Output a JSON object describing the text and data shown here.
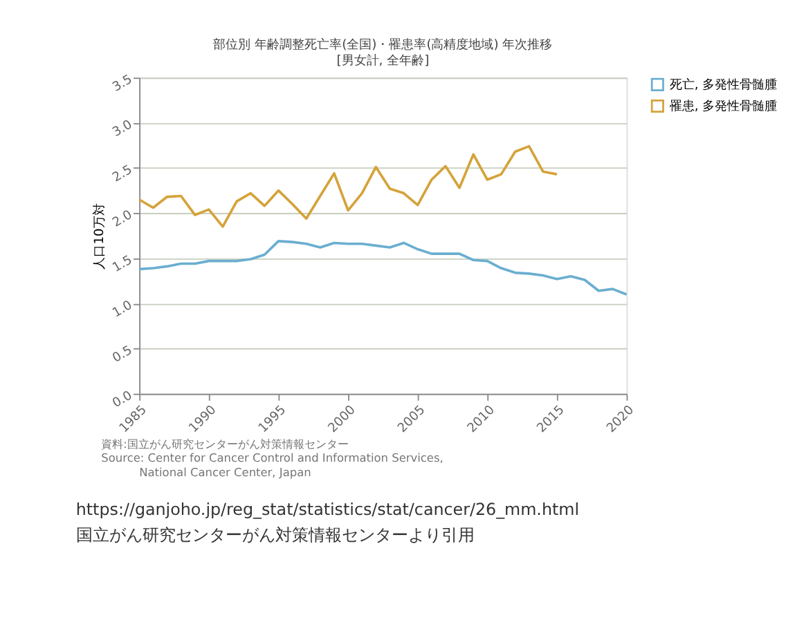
{
  "chart_data": {
    "type": "line",
    "title": "部位別 年齢調整死亡率(全国)・罹患率(高精度地域) 年次推移",
    "subtitle": "[男女計, 全年齢]",
    "ylabel": "人口10万対",
    "x": [
      1985,
      1986,
      1987,
      1988,
      1989,
      1990,
      1991,
      1992,
      1993,
      1994,
      1995,
      1996,
      1997,
      1998,
      1999,
      2000,
      2001,
      2002,
      2003,
      2004,
      2005,
      2006,
      2007,
      2008,
      2009,
      2010,
      2011,
      2012,
      2013,
      2014,
      2015,
      2016,
      2017,
      2018,
      2019,
      2020
    ],
    "series": [
      {
        "name": "死亡, 多発性骨髄腫",
        "color": "#6aaed0",
        "values": [
          1.38,
          1.39,
          1.41,
          1.44,
          1.44,
          1.47,
          1.47,
          1.47,
          1.49,
          1.54,
          1.69,
          1.68,
          1.66,
          1.62,
          1.67,
          1.66,
          1.66,
          1.64,
          1.62,
          1.67,
          1.6,
          1.55,
          1.55,
          1.55,
          1.48,
          1.47,
          1.39,
          1.34,
          1.33,
          1.31,
          1.27,
          1.3,
          1.26,
          1.14,
          1.16,
          1.1
        ]
      },
      {
        "name": "罹患, 多発性骨髄腫",
        "color": "#d4a33a",
        "values": [
          2.15,
          2.06,
          2.18,
          2.19,
          1.98,
          2.04,
          1.85,
          2.13,
          2.22,
          2.08,
          2.25,
          2.1,
          1.94,
          2.19,
          2.44,
          2.03,
          2.22,
          2.51,
          2.27,
          2.22,
          2.09,
          2.37,
          2.52,
          2.28,
          2.65,
          2.37,
          2.43,
          2.68,
          2.74,
          2.46,
          2.43,
          null,
          null,
          null,
          null,
          null
        ]
      }
    ],
    "xlim": [
      1985,
      2020
    ],
    "xticks": [
      1985,
      1990,
      1995,
      2000,
      2005,
      2010,
      2015,
      2020
    ],
    "ylim": [
      0,
      3.5
    ],
    "yticks": [
      {
        "value": 0,
        "label": "0.0"
      },
      {
        "value": 0.5,
        "label": "0.5"
      },
      {
        "value": 1,
        "label": "1.0"
      },
      {
        "value": 1.5,
        "label": "1.5"
      },
      {
        "value": 2,
        "label": "2.0"
      },
      {
        "value": 2.5,
        "label": "2.5"
      },
      {
        "value": 3,
        "label": "3.0"
      },
      {
        "value": 3.5,
        "label": "3.5"
      }
    ],
    "grid": "y",
    "legend": "top right",
    "marker": "none",
    "line_style": "solid",
    "annotations": [
      "資料:国立がん研究センターがん対策情報センター",
      "Source: Center for Cancer Control and Information Services,",
      "National Cancer Center, Japan",
      "https://ganjoho.jp/reg_stat/statistics/stat/cancer/26_mm.html",
      "国立がん研究センターがん対策情報センターより引用"
    ]
  }
}
